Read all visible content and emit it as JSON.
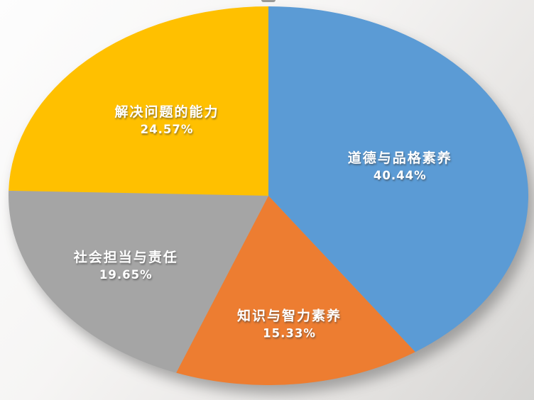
{
  "chart_data": {
    "type": "pie",
    "title": "",
    "legend": "none",
    "labels_inside": true,
    "start_angle_deg": 0,
    "direction": "clockwise",
    "total": 99.99,
    "segments": [
      {
        "label": "道德与品格素养",
        "value": 40.44,
        "display": "40.44%",
        "color": "#5B9BD5"
      },
      {
        "label": "知识与智力素养",
        "value": 15.33,
        "display": "15.33%",
        "color": "#ED7D31"
      },
      {
        "label": "社会担当与责任",
        "value": 19.65,
        "display": "19.65%",
        "color": "#A5A5A5"
      },
      {
        "label": "解决问题的能力",
        "value": 24.57,
        "display": "24.57%",
        "color": "#FFC000"
      }
    ],
    "background": {
      "top_left": "#fdfdfd",
      "bottom_right": "#d6d5d3"
    }
  }
}
